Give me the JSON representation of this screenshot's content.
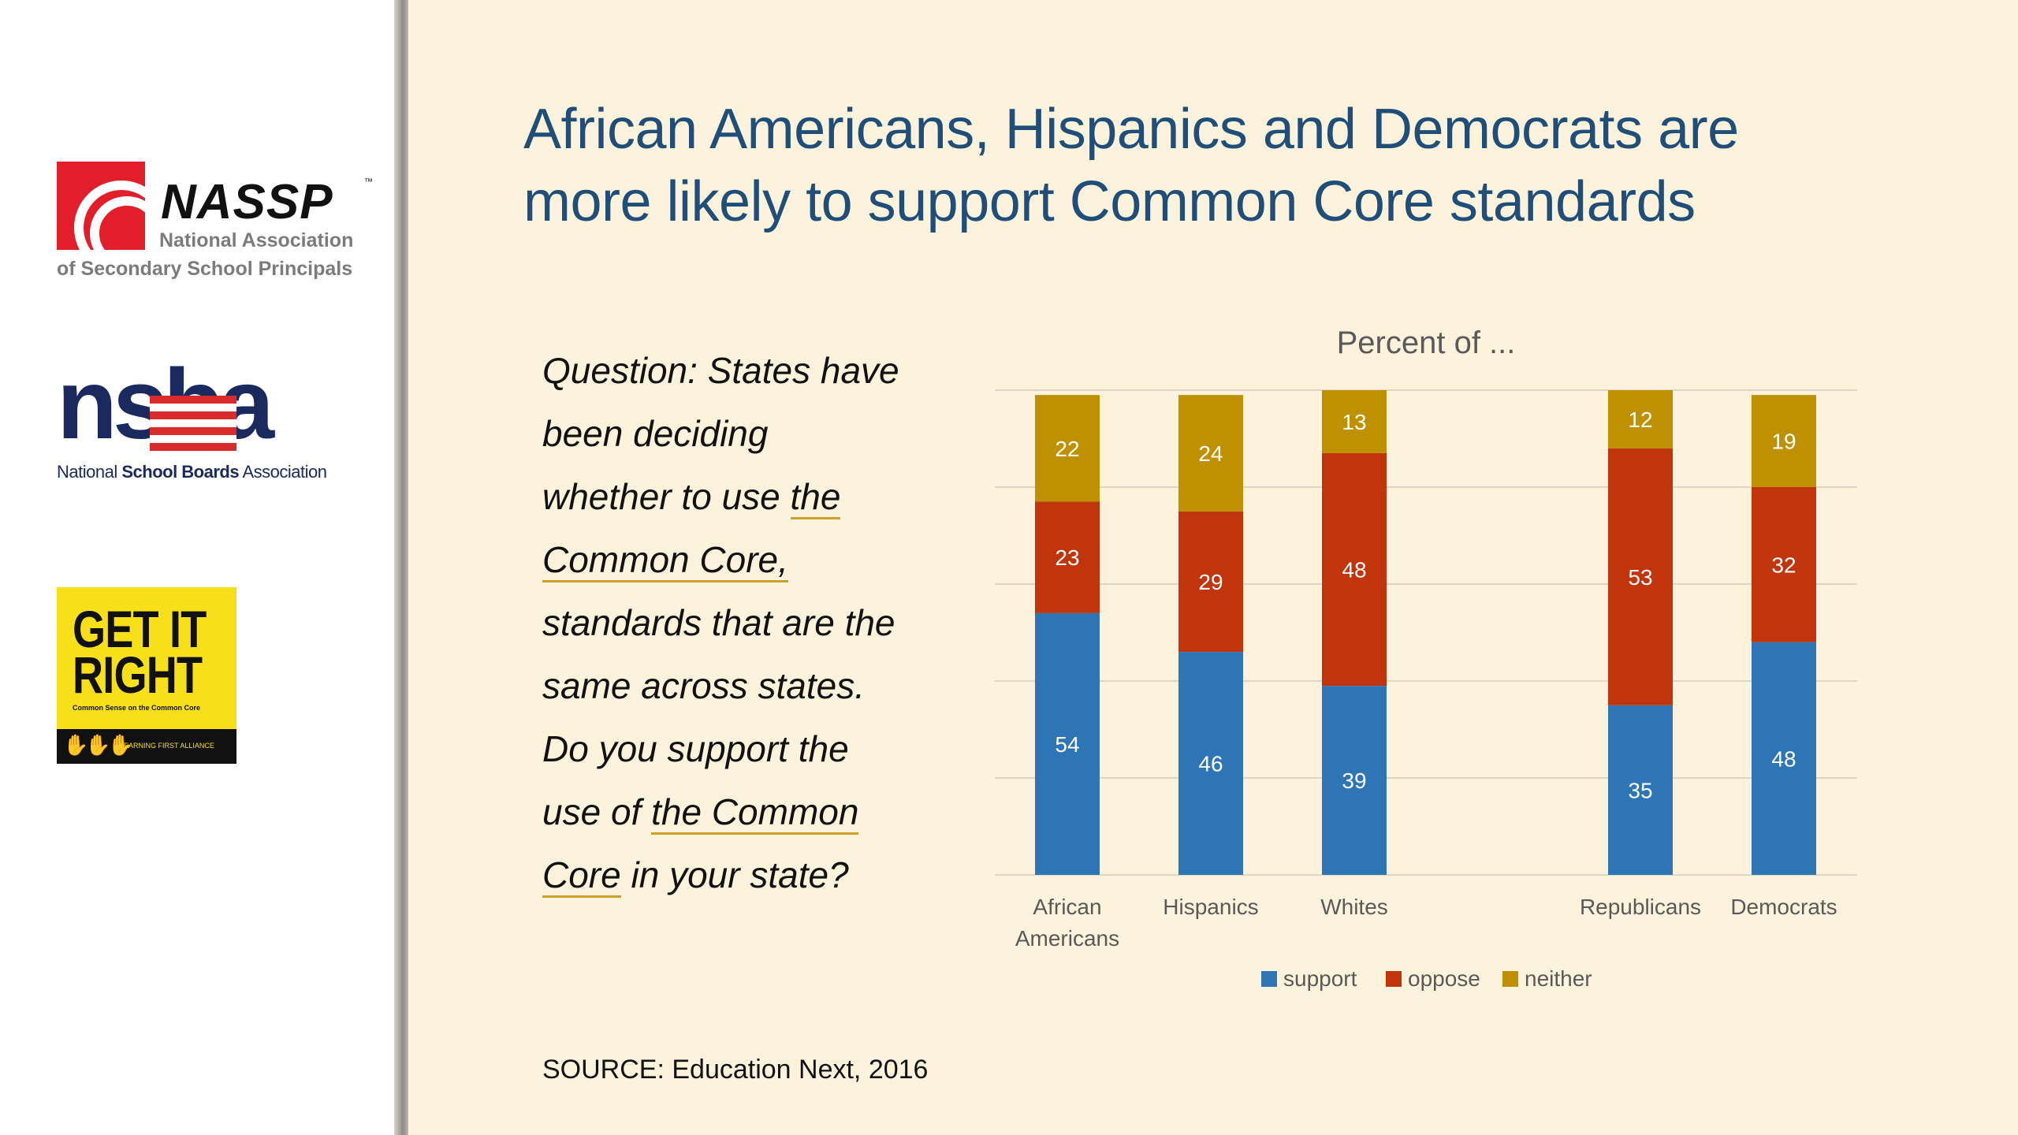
{
  "title_lines": [
    "African Americans, Hispanics and Democrats are",
    "more likely to support Common Core standards"
  ],
  "question_lines": [
    {
      "pre": "Question: States have",
      "u": "",
      "post": ""
    },
    {
      "pre": "been deciding",
      "u": "",
      "post": ""
    },
    {
      "pre": "whether to use ",
      "u": "the",
      "post": ""
    },
    {
      "pre": "",
      "u": "Common Core,",
      "post": ""
    },
    {
      "pre": "standards that are the",
      "u": "",
      "post": ""
    },
    {
      "pre": "same across states.",
      "u": "",
      "post": ""
    },
    {
      "pre": "Do you support the",
      "u": "",
      "post": ""
    },
    {
      "pre": "use of ",
      "u": "the Common",
      "post": ""
    },
    {
      "pre": "",
      "u": "Core",
      "post": " in your state?"
    }
  ],
  "source": "SOURCE: Education Next, 2016",
  "logos": {
    "nassp": {
      "name": "NASSP",
      "tm": "™",
      "line1": "National Association",
      "line2": "of Secondary School Principals"
    },
    "nsba": {
      "word": "nsba",
      "sub_pre": "National ",
      "sub_bold": "School Boards",
      "sub_post": " Association"
    },
    "getit": {
      "line1": "GET IT",
      "line2": "RIGHT",
      "tagline": "Common Sense on the Common Core",
      "band": "LEARNING FIRST ALLIANCE"
    }
  },
  "colors": {
    "support": "#2e75b6",
    "oppose": "#c0350b",
    "neither": "#bf9000",
    "title": "#1f4e79"
  },
  "chart_data": {
    "type": "bar",
    "stacked": true,
    "title": "Percent of ...",
    "categories": [
      [
        "African",
        "Americans"
      ],
      [
        "Hispanics"
      ],
      [
        "Whites"
      ],
      [
        "Republicans"
      ],
      [
        "Democrats"
      ]
    ],
    "series": [
      {
        "name": "support",
        "values": [
          54,
          46,
          39,
          35,
          48
        ]
      },
      {
        "name": "oppose",
        "values": [
          23,
          29,
          48,
          53,
          32
        ]
      },
      {
        "name": "neither",
        "values": [
          22,
          24,
          13,
          12,
          19
        ]
      }
    ],
    "ylim": [
      0,
      100
    ],
    "grid": true,
    "legend": "bottom"
  }
}
